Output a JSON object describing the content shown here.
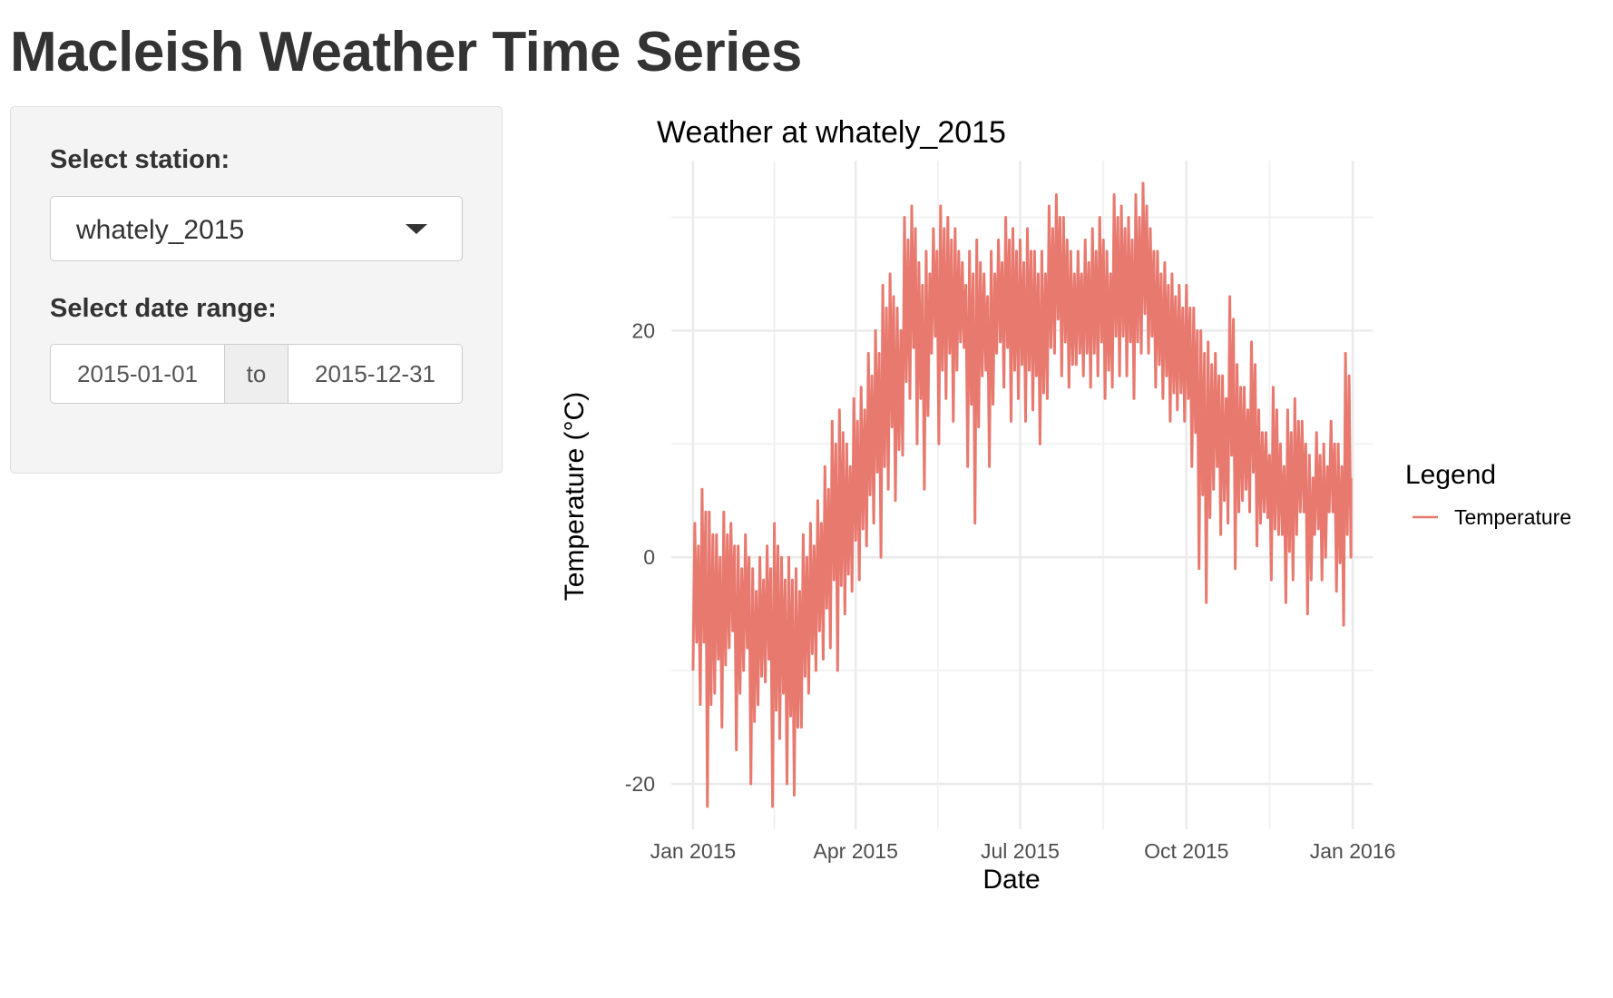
{
  "app": {
    "title": "Macleish Weather Time Series"
  },
  "sidebar": {
    "station_label": "Select station:",
    "station_value": "whately_2015",
    "date_range_label": "Select date range:",
    "date_start": "2015-01-01",
    "date_separator": "to",
    "date_end": "2015-12-31"
  },
  "colors": {
    "accent": "#E8796F",
    "text": "#333333",
    "panel": "#f4f4f4",
    "grid": "#ebebeb"
  },
  "chart_data": {
    "type": "line",
    "title": "Weather at whately_2015",
    "xlabel": "Date",
    "ylabel": "Temperature (°C)",
    "x_tick_labels": [
      "Jan 2015",
      "Apr 2015",
      "Jul 2015",
      "Oct 2015",
      "Jan 2016"
    ],
    "x_ticks": [
      "2015-01-01",
      "2015-04-01",
      "2015-07-01",
      "2015-10-01",
      "2016-01-01"
    ],
    "y_tick_labels": [
      "-20",
      "0",
      "20"
    ],
    "y_ticks": [
      -20,
      0,
      20
    ],
    "xlim": [
      "2014-12-20",
      "2016-01-12"
    ],
    "ylim": [
      -24,
      35
    ],
    "grid": true,
    "legend": {
      "title": "Legend",
      "position": "right",
      "entries": [
        "Temperature"
      ]
    },
    "series": [
      {
        "name": "Temperature",
        "color": "#E8796F",
        "x": [
          "2015-01-01",
          "2015-01-05",
          "2015-01-09",
          "2015-01-13",
          "2015-01-17",
          "2015-01-21",
          "2015-01-25",
          "2015-01-29",
          "2015-02-02",
          "2015-02-06",
          "2015-02-10",
          "2015-02-14",
          "2015-02-18",
          "2015-02-22",
          "2015-02-26",
          "2015-03-02",
          "2015-03-06",
          "2015-03-10",
          "2015-03-14",
          "2015-03-18",
          "2015-03-22",
          "2015-03-26",
          "2015-03-30",
          "2015-04-03",
          "2015-04-07",
          "2015-04-11",
          "2015-04-15",
          "2015-04-19",
          "2015-04-23",
          "2015-04-27",
          "2015-05-01",
          "2015-05-05",
          "2015-05-09",
          "2015-05-13",
          "2015-05-17",
          "2015-05-21",
          "2015-05-25",
          "2015-05-29",
          "2015-06-02",
          "2015-06-06",
          "2015-06-10",
          "2015-06-14",
          "2015-06-18",
          "2015-06-22",
          "2015-06-26",
          "2015-06-30",
          "2015-07-04",
          "2015-07-08",
          "2015-07-12",
          "2015-07-16",
          "2015-07-20",
          "2015-07-24",
          "2015-07-28",
          "2015-08-01",
          "2015-08-05",
          "2015-08-09",
          "2015-08-13",
          "2015-08-17",
          "2015-08-21",
          "2015-08-25",
          "2015-08-29",
          "2015-09-02",
          "2015-09-06",
          "2015-09-10",
          "2015-09-14",
          "2015-09-18",
          "2015-09-22",
          "2015-09-26",
          "2015-09-30",
          "2015-10-04",
          "2015-10-08",
          "2015-10-12",
          "2015-10-16",
          "2015-10-20",
          "2015-10-24",
          "2015-10-28",
          "2015-11-01",
          "2015-11-05",
          "2015-11-09",
          "2015-11-13",
          "2015-11-17",
          "2015-11-21",
          "2015-11-25",
          "2015-11-29",
          "2015-12-03",
          "2015-12-07",
          "2015-12-11",
          "2015-12-15",
          "2015-12-19",
          "2015-12-23",
          "2015-12-27",
          "2015-12-31"
        ],
        "low": [
          -10,
          -13,
          -22,
          -12,
          -15,
          -8,
          -17,
          -10,
          -20,
          -13,
          -11,
          -22,
          -16,
          -20,
          -21,
          -15,
          -12,
          -10,
          -9,
          -8,
          -10,
          -5,
          -3,
          -2,
          1,
          3,
          0,
          6,
          5,
          9,
          14,
          10,
          6,
          18,
          10,
          14,
          12,
          19,
          8,
          3,
          16,
          8,
          18,
          15,
          12,
          14,
          12,
          13,
          10,
          14,
          18,
          16,
          15,
          17,
          16,
          15,
          16,
          14,
          15,
          16,
          16,
          14,
          18,
          18,
          15,
          14,
          12,
          13,
          12,
          8,
          -1,
          -4,
          6,
          2,
          3,
          -1,
          5,
          4,
          1,
          4,
          -2,
          2,
          -4,
          -2,
          4,
          -5,
          2,
          -2,
          4,
          -3,
          -6,
          0
        ],
        "high": [
          3,
          6,
          4,
          2,
          4,
          3,
          1,
          2,
          -1,
          0,
          1,
          3,
          0,
          0,
          -1,
          2,
          3,
          5,
          8,
          12,
          13,
          10,
          14,
          15,
          18,
          20,
          24,
          25,
          22,
          30,
          31,
          26,
          27,
          29,
          31,
          30,
          29,
          26,
          27,
          28,
          25,
          27,
          28,
          30,
          29,
          28,
          29,
          27,
          27,
          31,
          32,
          30,
          27,
          27,
          28,
          29,
          30,
          27,
          32,
          31,
          30,
          32,
          33,
          29,
          27,
          26,
          25,
          24,
          24,
          22,
          20,
          19,
          18,
          16,
          23,
          17,
          15,
          19,
          13,
          11,
          15,
          10,
          13,
          14,
          12,
          9,
          11,
          10,
          12,
          10,
          18,
          7
        ]
      }
    ]
  }
}
